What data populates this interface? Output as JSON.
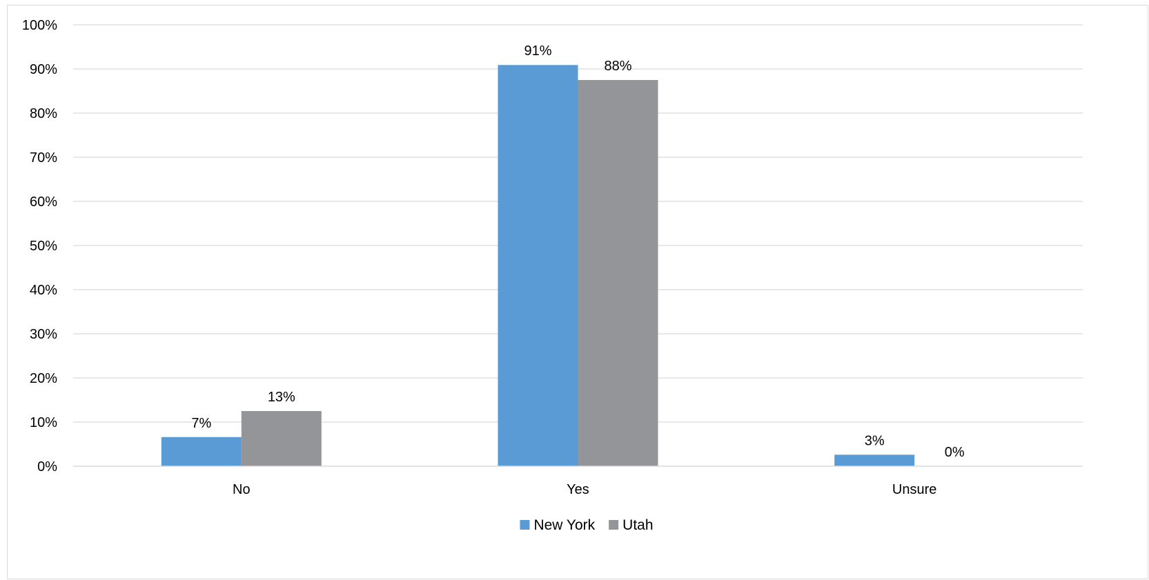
{
  "chart_data": {
    "type": "bar",
    "title": "",
    "xlabel": "",
    "ylabel": "",
    "categories": [
      "No",
      "Yes",
      "Unsure"
    ],
    "series": [
      {
        "name": "New York",
        "color": "#5b9bd5",
        "values": [
          0.066,
          0.909,
          0.026
        ],
        "labels": [
          "7%",
          "91%",
          "3%"
        ]
      },
      {
        "name": "Utah",
        "color": "#939598",
        "values": [
          0.125,
          0.875,
          0.0
        ],
        "labels": [
          "13%",
          "88%",
          "0%"
        ]
      }
    ],
    "ylim": [
      0,
      1
    ],
    "yticks": [
      0,
      0.1,
      0.2,
      0.3,
      0.4,
      0.5,
      0.6,
      0.7,
      0.8,
      0.9,
      1.0
    ],
    "ytick_labels": [
      "0%",
      "10%",
      "20%",
      "30%",
      "40%",
      "50%",
      "60%",
      "70%",
      "80%",
      "90%",
      "100%"
    ],
    "grid": true,
    "legend_position": "bottom",
    "gridline_color": "#d9d9d9",
    "axis_color": "#d9d9d9"
  }
}
